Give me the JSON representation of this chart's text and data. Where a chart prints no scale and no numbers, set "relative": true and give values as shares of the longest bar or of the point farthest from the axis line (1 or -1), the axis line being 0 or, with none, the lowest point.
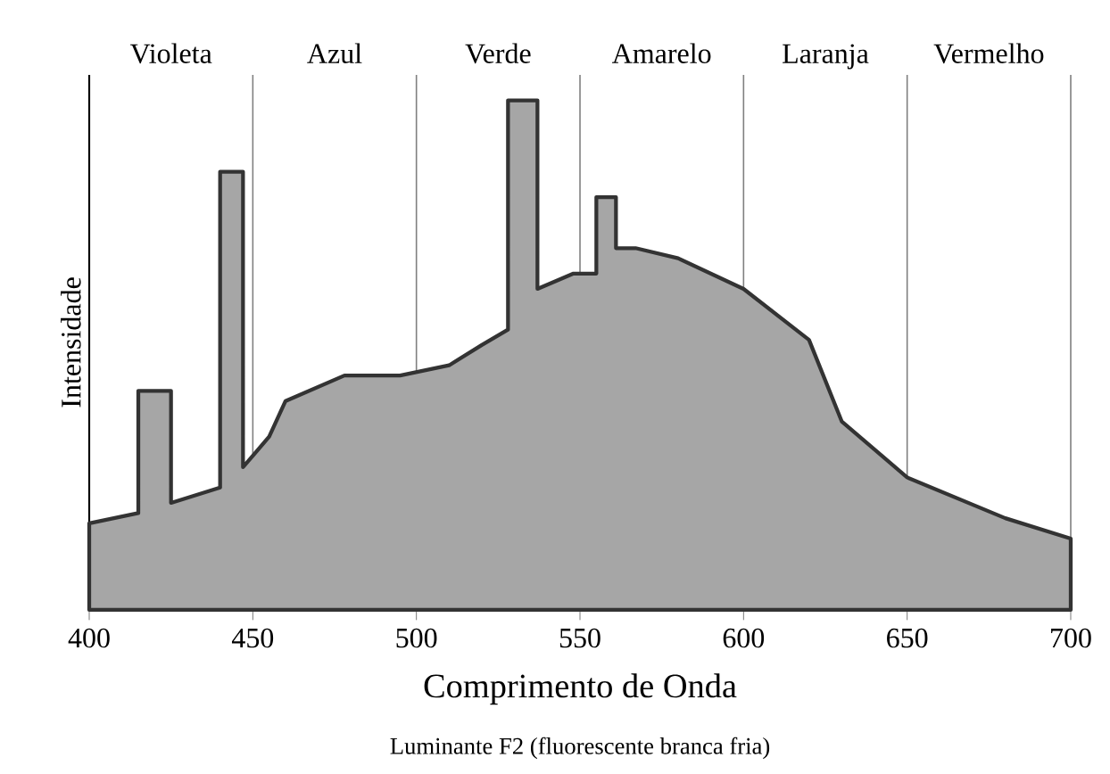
{
  "chart_data": {
    "type": "area",
    "relative": true,
    "xlabel": "Comprimento de Onda",
    "ylabel": "Intensidade",
    "annotations": [
      "Violeta",
      "Azul",
      "Verde",
      "Amarelo",
      "Laranja",
      "Vermelho",
      "Luminante F2 (fluorescente branca fria)"
    ],
    "grid": "x",
    "xlim": [
      400,
      700
    ],
    "xticks": [
      400,
      450,
      500,
      550,
      600,
      650,
      700
    ],
    "series": [
      {
        "color": "#a6a6a6",
        "x": [
          400,
          415,
          415,
          425,
          425,
          440,
          440,
          447,
          447,
          455,
          460,
          478,
          495,
          510,
          520,
          528,
          528,
          537,
          537,
          548,
          555,
          555,
          561,
          561,
          567,
          580,
          600,
          620,
          630,
          650,
          680,
          700
        ],
        "values": [
          0.17,
          0.19,
          0.43,
          0.43,
          0.21,
          0.24,
          0.86,
          0.86,
          0.28,
          0.34,
          0.41,
          0.46,
          0.46,
          0.48,
          0.52,
          0.55,
          1.0,
          1.0,
          0.63,
          0.66,
          0.66,
          0.81,
          0.81,
          0.71,
          0.71,
          0.69,
          0.63,
          0.53,
          0.37,
          0.26,
          0.18,
          0.14
        ]
      }
    ]
  }
}
